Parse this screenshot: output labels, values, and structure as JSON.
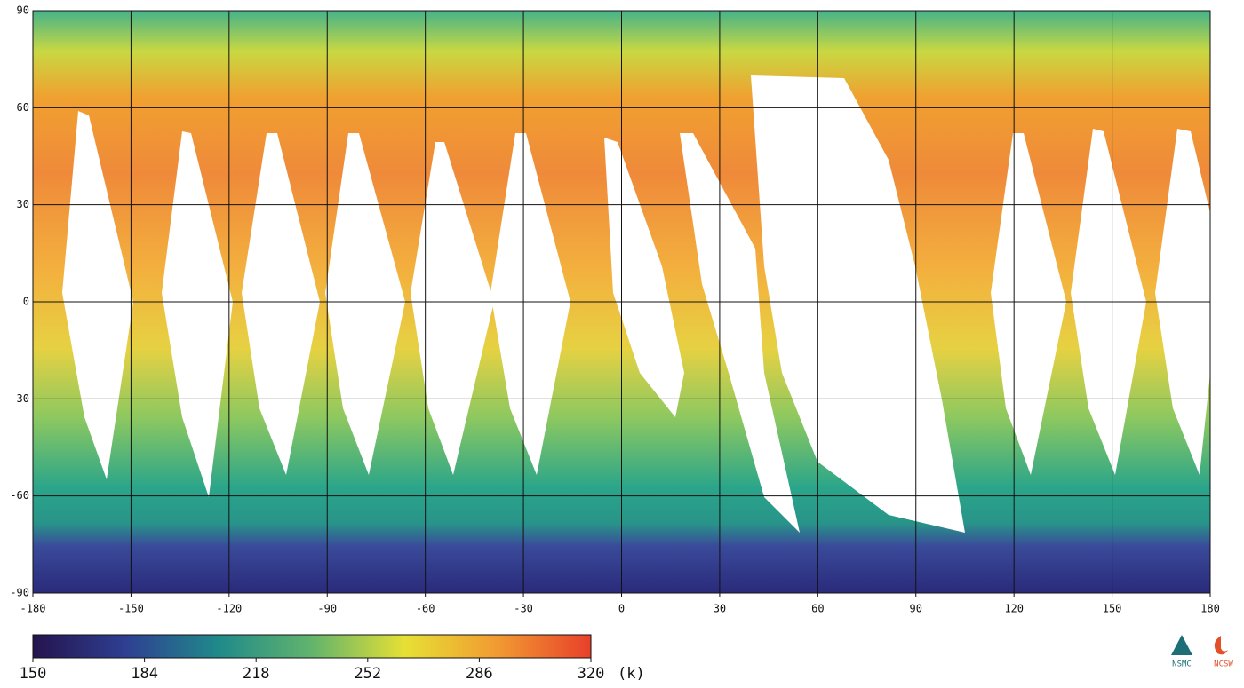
{
  "chart_data": {
    "type": "map",
    "xlim": [
      -180,
      180
    ],
    "ylim": [
      -90,
      90
    ],
    "xticks": [
      -180,
      -150,
      -120,
      -90,
      -60,
      -30,
      0,
      30,
      60,
      90,
      120,
      150,
      180
    ],
    "yticks": [
      -90,
      -60,
      -30,
      0,
      30,
      60,
      90
    ],
    "grid": true,
    "colorbar": {
      "lim": [
        150,
        320
      ],
      "ticks": [
        150,
        184,
        218,
        252,
        286,
        320
      ],
      "unit": "(k)",
      "colors": [
        "#24144e",
        "#2f3f92",
        "#1f8a8a",
        "#62b46c",
        "#e6e034",
        "#f19a32",
        "#e8402a"
      ]
    }
  },
  "logos": [
    "NSMC",
    "NCSW"
  ]
}
